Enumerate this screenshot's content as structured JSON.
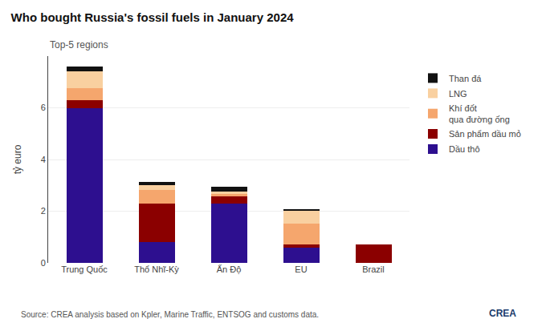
{
  "chart_data": {
    "type": "bar",
    "stacked": true,
    "title": "Who bought Russia's fossil fuels in January 2024",
    "subtitle": "Top-5 regions",
    "y_label": "tỷ euro",
    "annotations": [
      "Source: CREA analysis based on Kpler, Marine Traffic, ENTSOG and customs data.",
      "CREA"
    ],
    "categories": [
      "Trung Quốc",
      "Thổ Nhĩ-Kỳ",
      "Ấn Độ",
      "EU",
      "Brazil"
    ],
    "series": [
      {
        "name": "Dầu thô",
        "color": "#2d0f8f",
        "values": [
          6.0,
          0.8,
          2.3,
          0.6,
          0.0
        ]
      },
      {
        "name": "Sản phẩm dầu mỏ",
        "color": "#8b0000",
        "values": [
          0.28,
          1.5,
          0.28,
          0.1,
          0.7
        ]
      },
      {
        "name": "Khí đốt\nqua đường ống",
        "color": "#f5a66d",
        "values": [
          0.48,
          0.52,
          0.08,
          0.82,
          0.0
        ]
      },
      {
        "name": "LNG",
        "color": "#f9d0a0",
        "values": [
          0.65,
          0.2,
          0.1,
          0.52,
          0.0
        ]
      },
      {
        "name": "Than đá",
        "color": "#111111",
        "values": [
          0.2,
          0.1,
          0.2,
          0.03,
          0.0
        ]
      }
    ],
    "ylim": [
      0,
      8.0
    ],
    "yticks": [
      0,
      2,
      4,
      6
    ],
    "grid": true,
    "legend": "right"
  }
}
